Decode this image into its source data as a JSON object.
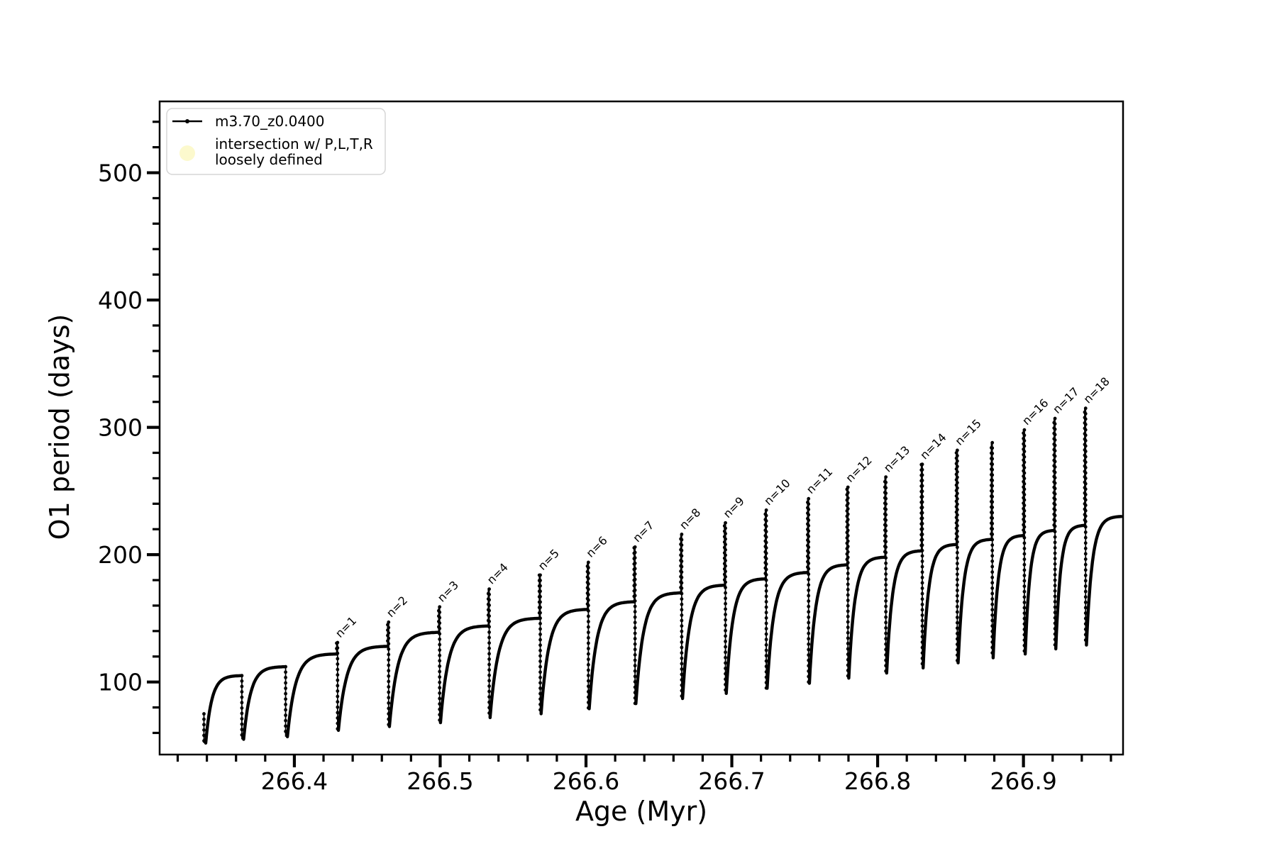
{
  "figure": {
    "background": "#ffffff"
  },
  "chart_data": {
    "type": "line",
    "title": "",
    "xlabel": "Age (Myr)",
    "ylabel": "O1 period (days)",
    "xlim": [
      266.3076,
      266.9683
    ],
    "ylim": [
      43,
      556
    ],
    "x_major_ticks": [
      266.4,
      266.5,
      266.6,
      266.7,
      266.8,
      266.9
    ],
    "x_minor_step": 0.02,
    "y_major_ticks": [
      100,
      200,
      300,
      400,
      500
    ],
    "y_minor_step": 20,
    "grid": false,
    "line_color": "#000000",
    "series_name": "m3.70_z0.0400",
    "legend": {
      "position": "upper left",
      "entries": [
        {
          "label": "m3.70_z0.0400",
          "marker": "line-dot",
          "color": "#000000"
        },
        {
          "label_lines": [
            "intersection w/ P,L,T,R",
            "loosely defined"
          ],
          "marker": "circle",
          "color": "#fcf9cd"
        }
      ]
    },
    "series_start": {
      "t": 266.338,
      "v_first": 75,
      "v_min": 52
    },
    "cycles": [
      {
        "t_end": 266.364,
        "v_min": 52,
        "v_max": 105,
        "spike": null,
        "label": null
      },
      {
        "t_end": 266.394,
        "v_min": 55,
        "v_max": 112,
        "spike": null,
        "label": null
      },
      {
        "t_end": 266.429,
        "v_min": 57,
        "v_max": 122,
        "spike": 131,
        "label": "n=1"
      },
      {
        "t_end": 266.464,
        "v_min": 62,
        "v_max": 128,
        "spike": 147,
        "label": "n=2"
      },
      {
        "t_end": 266.499,
        "v_min": 65,
        "v_max": 139,
        "spike": 159,
        "label": "n=3"
      },
      {
        "t_end": 266.533,
        "v_min": 68,
        "v_max": 144,
        "spike": 173,
        "label": "n=4"
      },
      {
        "t_end": 266.568,
        "v_min": 72,
        "v_max": 150,
        "spike": 184,
        "label": "n=5"
      },
      {
        "t_end": 266.601,
        "v_min": 75,
        "v_max": 157,
        "spike": 194,
        "label": "n=6"
      },
      {
        "t_end": 266.633,
        "v_min": 79,
        "v_max": 163,
        "spike": 206,
        "label": "n=7"
      },
      {
        "t_end": 266.665,
        "v_min": 83,
        "v_max": 170,
        "spike": 216,
        "label": "n=8"
      },
      {
        "t_end": 266.695,
        "v_min": 87,
        "v_max": 176,
        "spike": 225,
        "label": "n=9"
      },
      {
        "t_end": 266.723,
        "v_min": 91,
        "v_max": 181,
        "spike": 235,
        "label": "n=10"
      },
      {
        "t_end": 266.752,
        "v_min": 95,
        "v_max": 186,
        "spike": 244,
        "label": "n=11"
      },
      {
        "t_end": 266.779,
        "v_min": 99,
        "v_max": 192,
        "spike": 253,
        "label": "n=12"
      },
      {
        "t_end": 266.805,
        "v_min": 103,
        "v_max": 198,
        "spike": 261,
        "label": "n=13"
      },
      {
        "t_end": 266.83,
        "v_min": 107,
        "v_max": 203,
        "spike": 271,
        "label": "n=14"
      },
      {
        "t_end": 266.854,
        "v_min": 111,
        "v_max": 208,
        "spike": 282,
        "label": "n=15"
      },
      {
        "t_end": 266.878,
        "v_min": 115,
        "v_max": 212,
        "spike": 288,
        "label": null
      },
      {
        "t_end": 266.9,
        "v_min": 119,
        "v_max": 215,
        "spike": 298,
        "label": "n=16"
      },
      {
        "t_end": 266.921,
        "v_min": 122,
        "v_max": 219,
        "spike": 307,
        "label": "n=17"
      },
      {
        "t_end": 266.942,
        "v_min": 126,
        "v_max": 223,
        "spike": 315,
        "label": "n=18"
      },
      {
        "t_end": 266.967,
        "v_min": 129,
        "v_max": 230,
        "spike": null,
        "label": null
      }
    ]
  }
}
